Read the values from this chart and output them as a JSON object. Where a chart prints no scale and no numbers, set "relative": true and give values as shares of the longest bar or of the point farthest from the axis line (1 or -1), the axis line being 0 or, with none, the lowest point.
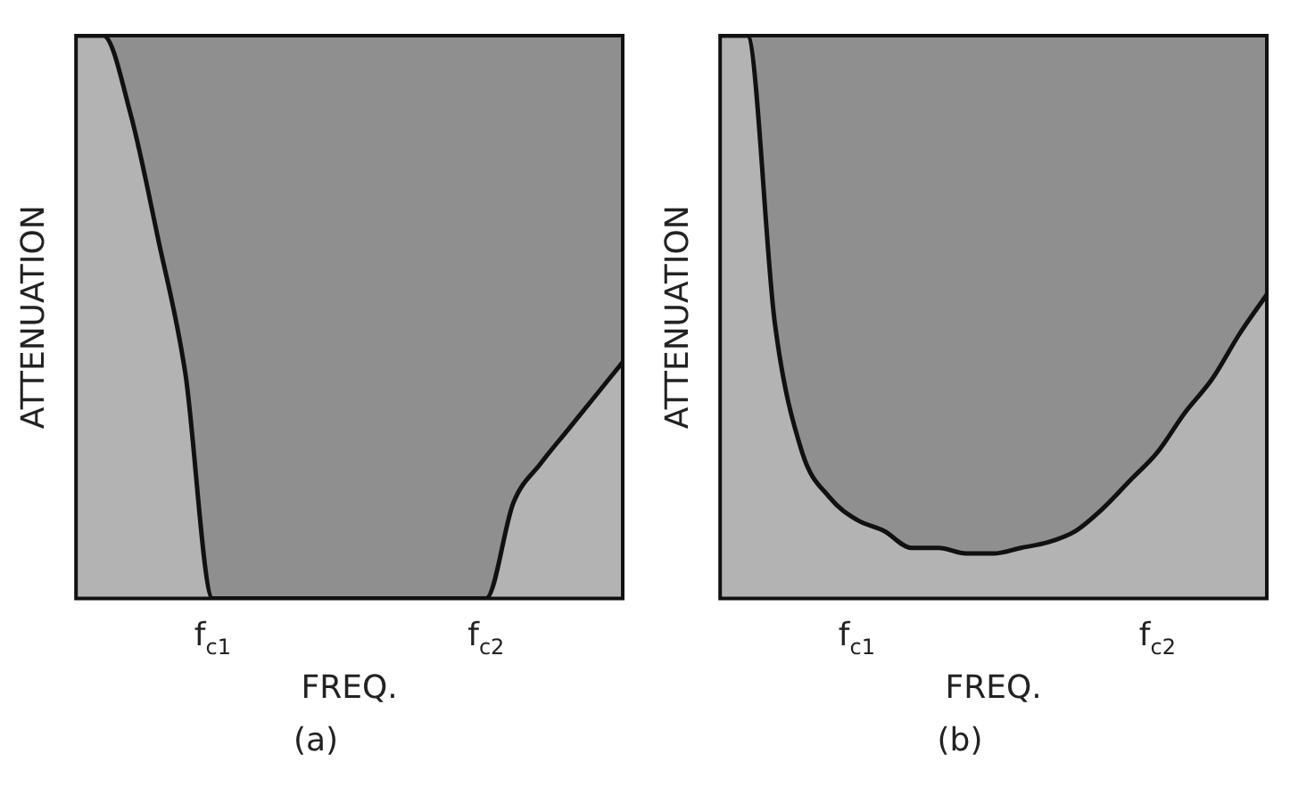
{
  "chart_data": [
    {
      "type": "area",
      "title": "(a)",
      "xlabel": "FREQ.",
      "ylabel": "ATTENUATION",
      "relative": true,
      "grid": false,
      "legend": false,
      "categories": [
        null,
        null,
        null,
        null,
        null,
        "f$_{c1}$",
        null,
        null,
        null,
        null,
        null,
        null,
        null,
        null,
        null,
        "f$_{c2}$",
        null,
        null,
        null,
        null,
        null
      ],
      "series": [
        {
          "color": "#b3b3b3",
          "values": [
            1,
            1,
            0.86,
            0.64,
            0.4,
            0,
            0,
            0,
            0,
            0,
            0,
            0,
            0,
            0,
            0,
            0,
            0.17,
            0.24,
            0.3,
            0.36,
            0.42
          ]
        }
      ]
    },
    {
      "type": "area",
      "title": "(b)",
      "xlabel": "FREQ.",
      "ylabel": "ATTENUATION",
      "relative": true,
      "grid": false,
      "legend": false,
      "categories": [
        null,
        null,
        null,
        null,
        null,
        "f$_{c1}$",
        null,
        null,
        null,
        null,
        null,
        null,
        null,
        null,
        null,
        null,
        "f$_{c2}$",
        null,
        null,
        null,
        null
      ],
      "series": [
        {
          "color": "#b3b3b3",
          "values": [
            1,
            1,
            0.49,
            0.26,
            0.18,
            0.14,
            0.12,
            0.09,
            0.09,
            0.08,
            0.08,
            0.09,
            0.1,
            0.12,
            0.16,
            0.21,
            0.26,
            0.33,
            0.39,
            0.47,
            0.54
          ]
        }
      ]
    }
  ]
}
